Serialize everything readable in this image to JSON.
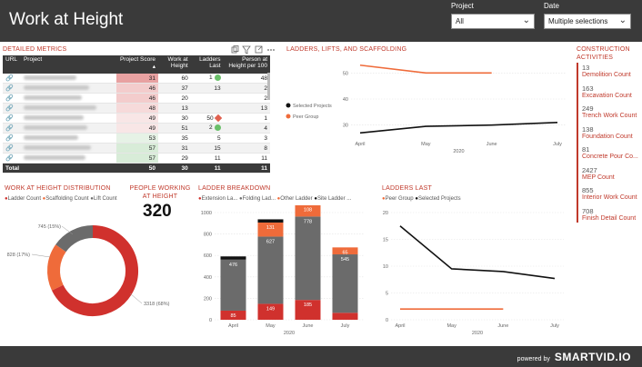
{
  "header": {
    "title": "Work at Height"
  },
  "filters": {
    "project": {
      "label": "Project",
      "value": "All"
    },
    "date": {
      "label": "Date",
      "value": "Multiple selections"
    }
  },
  "metrics": {
    "title": "DETAILED METRICS",
    "columns": [
      "URL",
      "Project",
      "Project Score",
      "Work at Height",
      "Ladders Last",
      "Person at Height per 100"
    ],
    "rows": [
      {
        "score": "31",
        "wah": "60",
        "ll": "1",
        "pah": "48",
        "ind": "green",
        "sc": "#e8a1a1"
      },
      {
        "score": "46",
        "wah": "37",
        "ll": "13",
        "pah": "2",
        "ind": "",
        "sc": "#f3cccc"
      },
      {
        "score": "46",
        "wah": "20",
        "ll": "",
        "pah": "2",
        "ind": "",
        "sc": "#f3cccc"
      },
      {
        "score": "48",
        "wah": "13",
        "ll": "",
        "pah": "13",
        "ind": "",
        "sc": "#f6dada"
      },
      {
        "score": "49",
        "wah": "30",
        "ll": "50",
        "pah": "1",
        "ind": "red",
        "sc": "#f8e6e6"
      },
      {
        "score": "49",
        "wah": "51",
        "ll": "2",
        "pah": "4",
        "ind": "green",
        "sc": "#f8e6e6"
      },
      {
        "score": "53",
        "wah": "35",
        "ll": "5",
        "pah": "3",
        "ind": "",
        "sc": "#e6f2e6"
      },
      {
        "score": "57",
        "wah": "31",
        "ll": "15",
        "pah": "8",
        "ind": "",
        "sc": "#d8ecd8"
      },
      {
        "score": "57",
        "wah": "29",
        "ll": "11",
        "pah": "11",
        "ind": "",
        "sc": "#d8ecd8"
      }
    ],
    "total": {
      "label": "Total",
      "score": "50",
      "wah": "30",
      "ll": "11",
      "pah": "11"
    }
  },
  "sections": {
    "ladders": "LADDERS, LIFTS, AND SCAFFOLDING",
    "distribution": "WORK AT HEIGHT DISTRIBUTION",
    "people": "PEOPLE WORKING AT HEIGHT",
    "breakdown": "LADDER BREAKDOWN",
    "ladders_last": "LADDERS LAST",
    "activities": "CONSTRUCTION ACTIVITIES"
  },
  "people_value": "320",
  "activities": [
    {
      "value": "13",
      "label": "Demolition Count"
    },
    {
      "value": "163",
      "label": "Excavation Count"
    },
    {
      "value": "249",
      "label": "Trench Work Count"
    },
    {
      "value": "138",
      "label": "Foundation Count"
    },
    {
      "value": "81",
      "label": "Concrete Pour Co..."
    },
    {
      "value": "2427",
      "label": "MEP Count"
    },
    {
      "value": "855",
      "label": "Interior Work Count"
    },
    {
      "value": "708",
      "label": "Finish Detail Count"
    }
  ],
  "colors": {
    "accent": "#c0392b",
    "orange": "#ef6b3a",
    "red": "#d0312d",
    "gray": "#6b6b6b",
    "black": "#111111",
    "dark": "#3a3a3a"
  },
  "powered": {
    "text": "powered by",
    "brand": "SMARTVID.IO"
  },
  "chart_data": [
    {
      "type": "line",
      "name": "ladders_lifts_scaffolding",
      "x": [
        "April",
        "May",
        "June",
        "July"
      ],
      "xlabel": "2020",
      "ylim": [
        25,
        55
      ],
      "yticks": [
        30,
        40,
        50
      ],
      "series": [
        {
          "name": "Selected Projects",
          "values": [
            27,
            29.5,
            30,
            31
          ],
          "color": "#111111"
        },
        {
          "name": "Peer Group",
          "values": [
            53,
            50,
            50,
            null
          ],
          "color": "#ef6b3a"
        }
      ]
    },
    {
      "type": "pie",
      "name": "work_at_height_distribution",
      "legend": [
        "Ladder Count",
        "Scaffolding Count",
        "Lift Count"
      ],
      "slices": [
        {
          "name": "Ladder Count",
          "value": 3318,
          "label": "3318 (68%)",
          "color": "#d0312d"
        },
        {
          "name": "Scaffolding Count",
          "value": 828,
          "label": "828 (17%)",
          "color": "#ef6b3a"
        },
        {
          "name": "Lift Count",
          "value": 745,
          "label": "745 (15%)",
          "color": "#6b6b6b"
        }
      ]
    },
    {
      "type": "bar",
      "name": "ladder_breakdown",
      "categories": [
        "April",
        "May",
        "June",
        "July"
      ],
      "xlabel": "2020",
      "ylim": [
        0,
        1000
      ],
      "yticks": [
        0,
        200,
        400,
        600,
        800,
        1000
      ],
      "legend": [
        "Extension La...",
        "Folding Lad...",
        "Other Ladder",
        "Site Ladder ..."
      ],
      "series": [
        {
          "name": "Extension La...",
          "values": [
            85,
            149,
            185,
            65
          ],
          "color": "#d0312d"
        },
        {
          "name": "Folding Lad...",
          "values": [
            476,
            627,
            778,
            545
          ],
          "color": "#6b6b6b"
        },
        {
          "name": "Other Ladder",
          "values": [
            0,
            131,
            108,
            65
          ],
          "color": "#ef6b3a"
        },
        {
          "name": "Site Ladder ...",
          "values": [
            30,
            30,
            15,
            0
          ],
          "color": "#111111"
        }
      ],
      "labels": [
        [
          "85",
          "476",
          "",
          ""
        ],
        [
          "149",
          "627",
          "131",
          ""
        ],
        [
          "185",
          "778",
          "108",
          ""
        ],
        [
          "",
          "545",
          "65",
          ""
        ]
      ]
    },
    {
      "type": "line",
      "name": "ladders_last",
      "x": [
        "April",
        "May",
        "June",
        "July"
      ],
      "xlabel": "2020",
      "ylim": [
        0,
        20
      ],
      "yticks": [
        0,
        5,
        10,
        15,
        20
      ],
      "series": [
        {
          "name": "Peer Group",
          "values": [
            2,
            2,
            2,
            null
          ],
          "color": "#ef6b3a"
        },
        {
          "name": "Selected Projects",
          "values": [
            17.5,
            9.5,
            9,
            7.7
          ],
          "color": "#111111"
        }
      ]
    }
  ]
}
